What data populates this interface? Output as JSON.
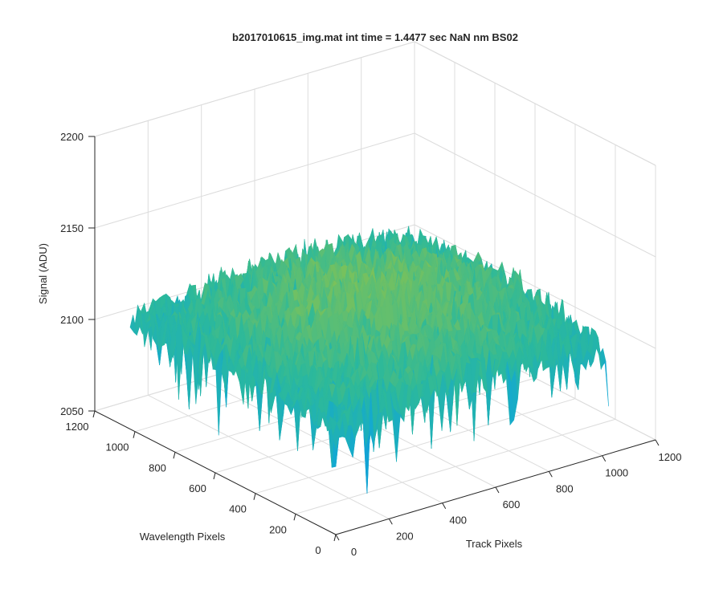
{
  "chart_data": {
    "type": "surface",
    "title": "b2017010615_img.mat int time = 1.4477 sec  NaN nm BS02",
    "xlabel": "Track Pixels",
    "ylabel": "Wavelength Pixels",
    "zlabel": "Signal (ADU)",
    "xlim": [
      0,
      1200
    ],
    "ylim": [
      0,
      1200
    ],
    "zlim": [
      2050,
      2200
    ],
    "x_ticks": [
      0,
      200,
      400,
      600,
      800,
      1000,
      1200
    ],
    "y_ticks": [
      0,
      200,
      400,
      600,
      800,
      1000,
      1200
    ],
    "z_ticks": [
      2050,
      2100,
      2150,
      2200
    ],
    "x_tick_labels": [
      "0",
      "200",
      "400",
      "600",
      "800",
      "1000",
      "1200"
    ],
    "y_tick_labels": [
      "0",
      "200",
      "400",
      "600",
      "800",
      "1000",
      "1200"
    ],
    "z_tick_labels": [
      "2050",
      "2100",
      "2150",
      "2200"
    ],
    "data_extent": {
      "x": [
        0,
        1024
      ],
      "y": [
        0,
        1024
      ]
    },
    "surface_summary": {
      "center_signal": 2130,
      "center_x": 530,
      "center_y": 530,
      "edge_signal_min": 2095,
      "edge_signal_max": 2110,
      "noise_range": [
        2065,
        2170
      ]
    },
    "colormap": "parula",
    "colormap_colors": [
      "#3e26a8",
      "#0a6fe0",
      "#12a8d3",
      "#2cb99b",
      "#7ac15b",
      "#c6bc3a",
      "#f4c42c",
      "#f9fb0e"
    ],
    "grid": true,
    "box_color": "#262626",
    "grid_color": "#dcdcdc"
  }
}
